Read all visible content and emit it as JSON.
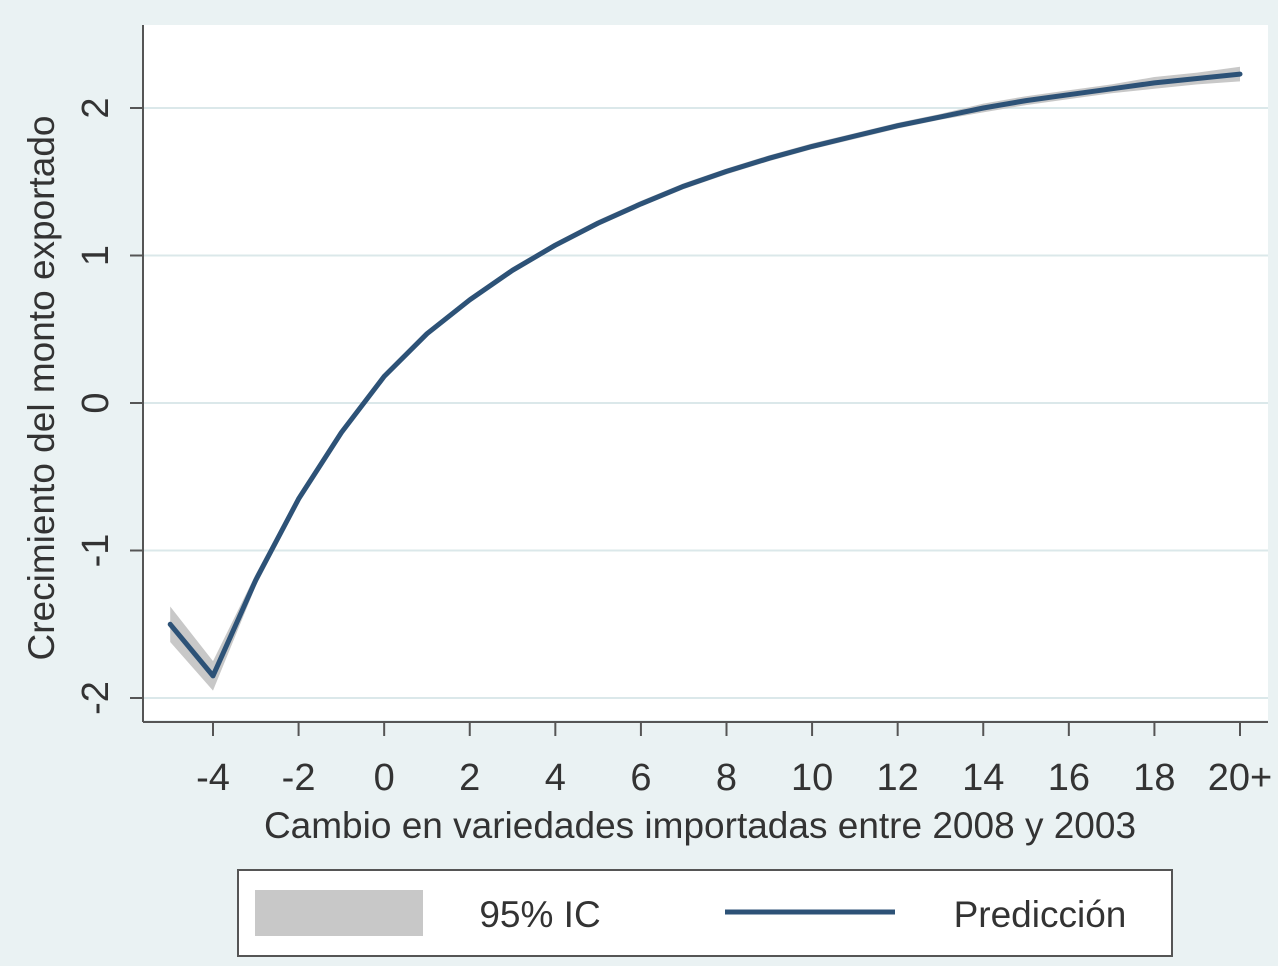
{
  "chart_data": {
    "type": "line",
    "xlabel": "Cambio en variedades importadas entre 2008 y 2003",
    "ylabel": "Crecimiento del monto exportado",
    "x_ticks": [
      "-4",
      "-2",
      "0",
      "2",
      "4",
      "6",
      "8",
      "10",
      "12",
      "14",
      "16",
      "18",
      "20+"
    ],
    "x_tick_values": [
      -4,
      -2,
      0,
      2,
      4,
      6,
      8,
      10,
      12,
      14,
      16,
      18,
      20
    ],
    "y_ticks": [
      "-2",
      "-1",
      "0",
      "1",
      "2"
    ],
    "y_tick_values": [
      -2,
      -1,
      0,
      1,
      2
    ],
    "xlim": [
      -5,
      20
    ],
    "ylim": [
      -2.2,
      2.5
    ],
    "grid": true,
    "legend_position": "bottom",
    "colors": {
      "line": "#2d5277",
      "band": "#c8c8c8",
      "grid": "#dbe8ea",
      "plot_background": "#ffffff",
      "outer_background": "#eaf2f3",
      "axis": "#555555"
    },
    "series": [
      {
        "name": "Predicción",
        "type": "line",
        "x": [
          -5,
          -4,
          -3,
          -2,
          -1,
          0,
          1,
          2,
          3,
          4,
          5,
          6,
          7,
          8,
          9,
          10,
          11,
          12,
          13,
          14,
          15,
          16,
          17,
          18,
          19,
          20
        ],
        "y": [
          -1.5,
          -1.85,
          -1.2,
          -0.65,
          -0.2,
          0.18,
          0.47,
          0.7,
          0.9,
          1.07,
          1.22,
          1.35,
          1.47,
          1.57,
          1.66,
          1.74,
          1.81,
          1.88,
          1.94,
          2.0,
          2.05,
          2.09,
          2.13,
          2.17,
          2.2,
          2.23
        ]
      },
      {
        "name": "95% IC",
        "type": "band",
        "x": [
          -5,
          -4,
          -3,
          -2,
          -1,
          0,
          1,
          2,
          3,
          4,
          5,
          6,
          7,
          8,
          9,
          10,
          11,
          12,
          13,
          14,
          15,
          16,
          17,
          18,
          19,
          20
        ],
        "lower": [
          -1.62,
          -1.95,
          -1.24,
          -0.68,
          -0.22,
          0.16,
          0.45,
          0.68,
          0.88,
          1.05,
          1.2,
          1.33,
          1.45,
          1.55,
          1.64,
          1.72,
          1.79,
          1.86,
          1.92,
          1.97,
          2.02,
          2.06,
          2.1,
          2.13,
          2.16,
          2.18
        ],
        "upper": [
          -1.38,
          -1.75,
          -1.16,
          -0.62,
          -0.18,
          0.2,
          0.49,
          0.72,
          0.92,
          1.09,
          1.24,
          1.37,
          1.49,
          1.59,
          1.68,
          1.76,
          1.83,
          1.9,
          1.96,
          2.03,
          2.08,
          2.12,
          2.16,
          2.21,
          2.24,
          2.28
        ]
      }
    ]
  },
  "legend": {
    "items": [
      {
        "label": "95% IC"
      },
      {
        "label": "Predicción"
      }
    ]
  }
}
